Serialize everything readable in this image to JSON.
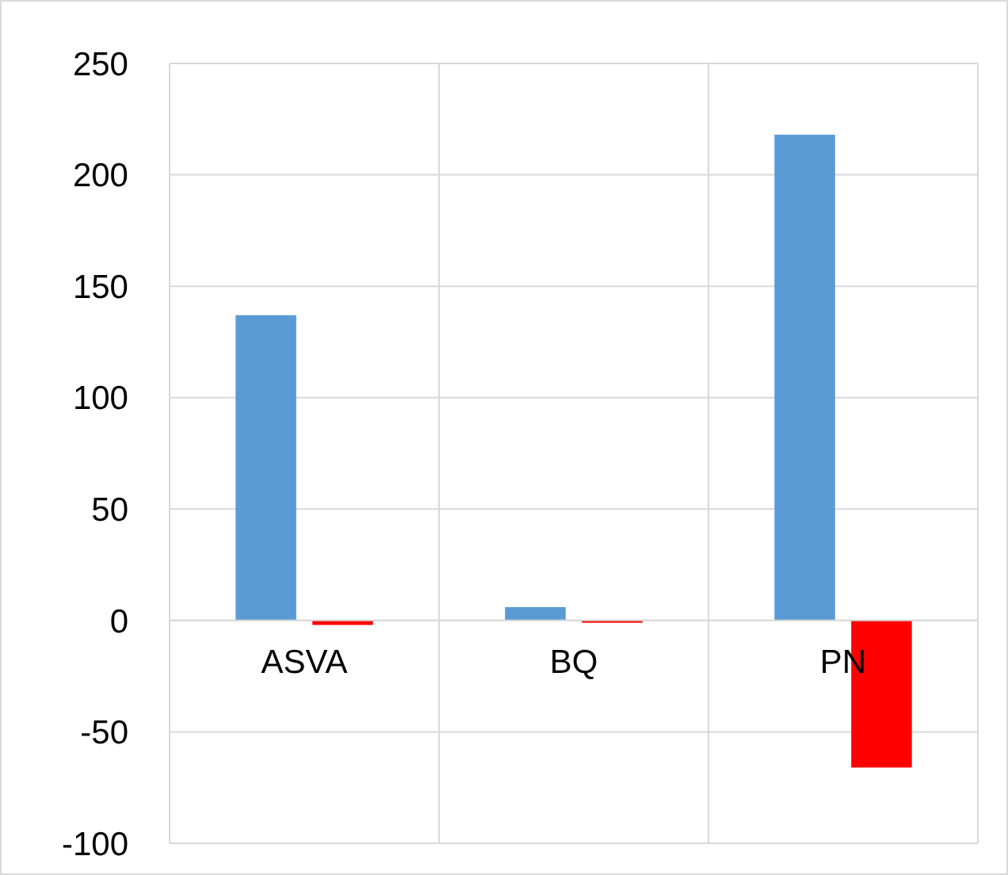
{
  "chart_data": {
    "type": "bar",
    "categories": [
      "ASVA",
      "BQ",
      "PN"
    ],
    "series": [
      {
        "color": "#5b9bd5",
        "values": [
          137,
          6,
          218
        ]
      },
      {
        "color": "#ff0000",
        "values": [
          -2,
          -1,
          -66
        ]
      }
    ],
    "ylim": [
      -100,
      250
    ],
    "yticks": [
      -100,
      -50,
      0,
      50,
      100,
      150,
      200,
      250
    ],
    "grid": true
  }
}
